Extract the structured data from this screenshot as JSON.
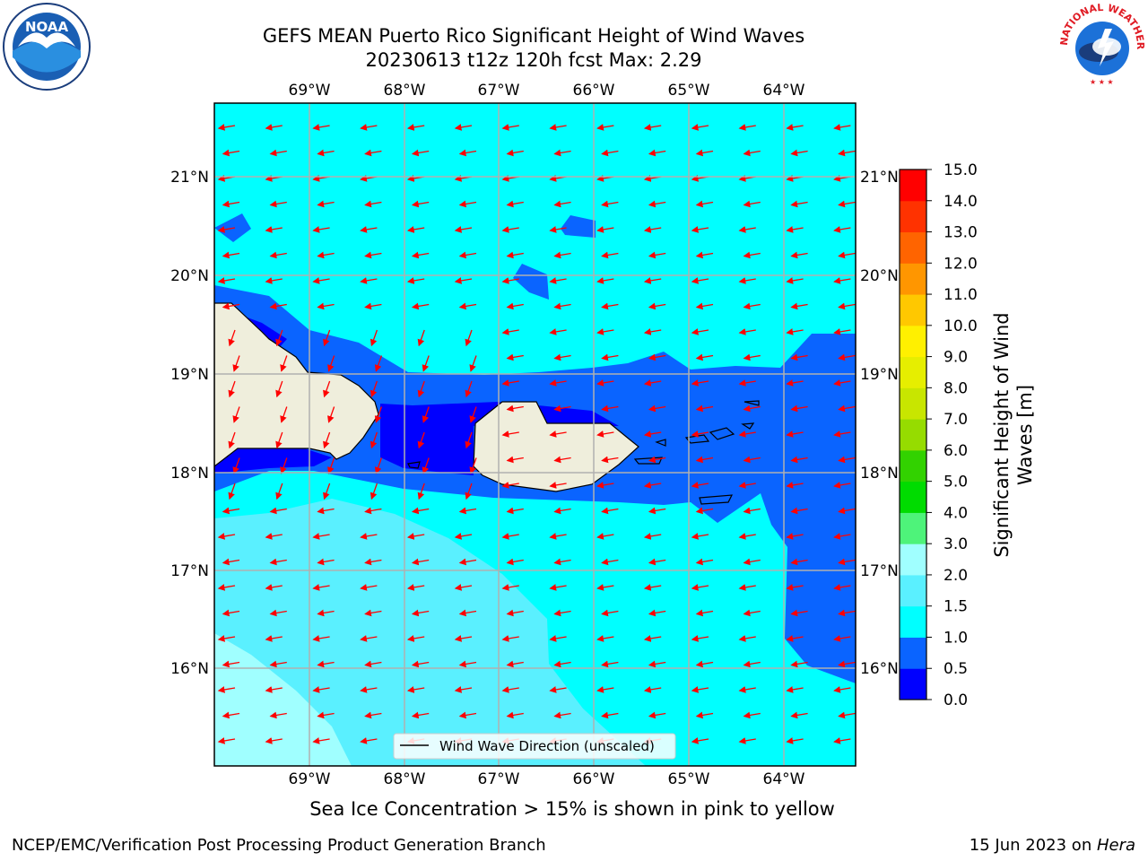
{
  "header": {
    "title_line1": "GEFS MEAN Puerto Rico Significant Height of Wind Waves",
    "title_line2": "20230613 t12z 120h fcst   Max: 2.29"
  },
  "map": {
    "lon_labels": [
      "69°W",
      "68°W",
      "67°W",
      "66°W",
      "65°W",
      "64°W"
    ],
    "lat_labels": [
      "21°N",
      "20°N",
      "19°N",
      "18°N",
      "17°N",
      "16°N"
    ],
    "legend_label": "Wind Wave Direction (unscaled)",
    "arrow_color": "#ff0000",
    "land_color": "#efeedc",
    "grid_color": "#b0b0b0"
  },
  "colorbar": {
    "label": "Significant Height of Wind Waves [m]",
    "ticks": [
      "0.0",
      "0.5",
      "1.0",
      "1.5",
      "2.0",
      "3.0",
      "4.0",
      "5.0",
      "6.0",
      "7.0",
      "8.0",
      "9.0",
      "10.0",
      "11.0",
      "12.0",
      "13.0",
      "14.0",
      "15.0"
    ],
    "colors": [
      "#0000ff",
      "#0a64ff",
      "#00ffff",
      "#5af0ff",
      "#a0ffff",
      "#4ef37a",
      "#00dc00",
      "#32d200",
      "#96dc00",
      "#c8e600",
      "#e6ee00",
      "#fff000",
      "#ffc800",
      "#ff9600",
      "#ff6400",
      "#ff3200",
      "#ff0000"
    ]
  },
  "caption": "Sea Ice Concentration > 15% is shown in pink to yellow",
  "footer": {
    "left": "NCEP/EMC/Verification Post Processing Product Generation Branch",
    "right_prefix": "15 Jun 2023 on ",
    "right_machine": "Hera"
  },
  "logos": {
    "noaa_text": "NOAA",
    "nws_text": "NATIONAL WEATHER SERVICE"
  }
}
